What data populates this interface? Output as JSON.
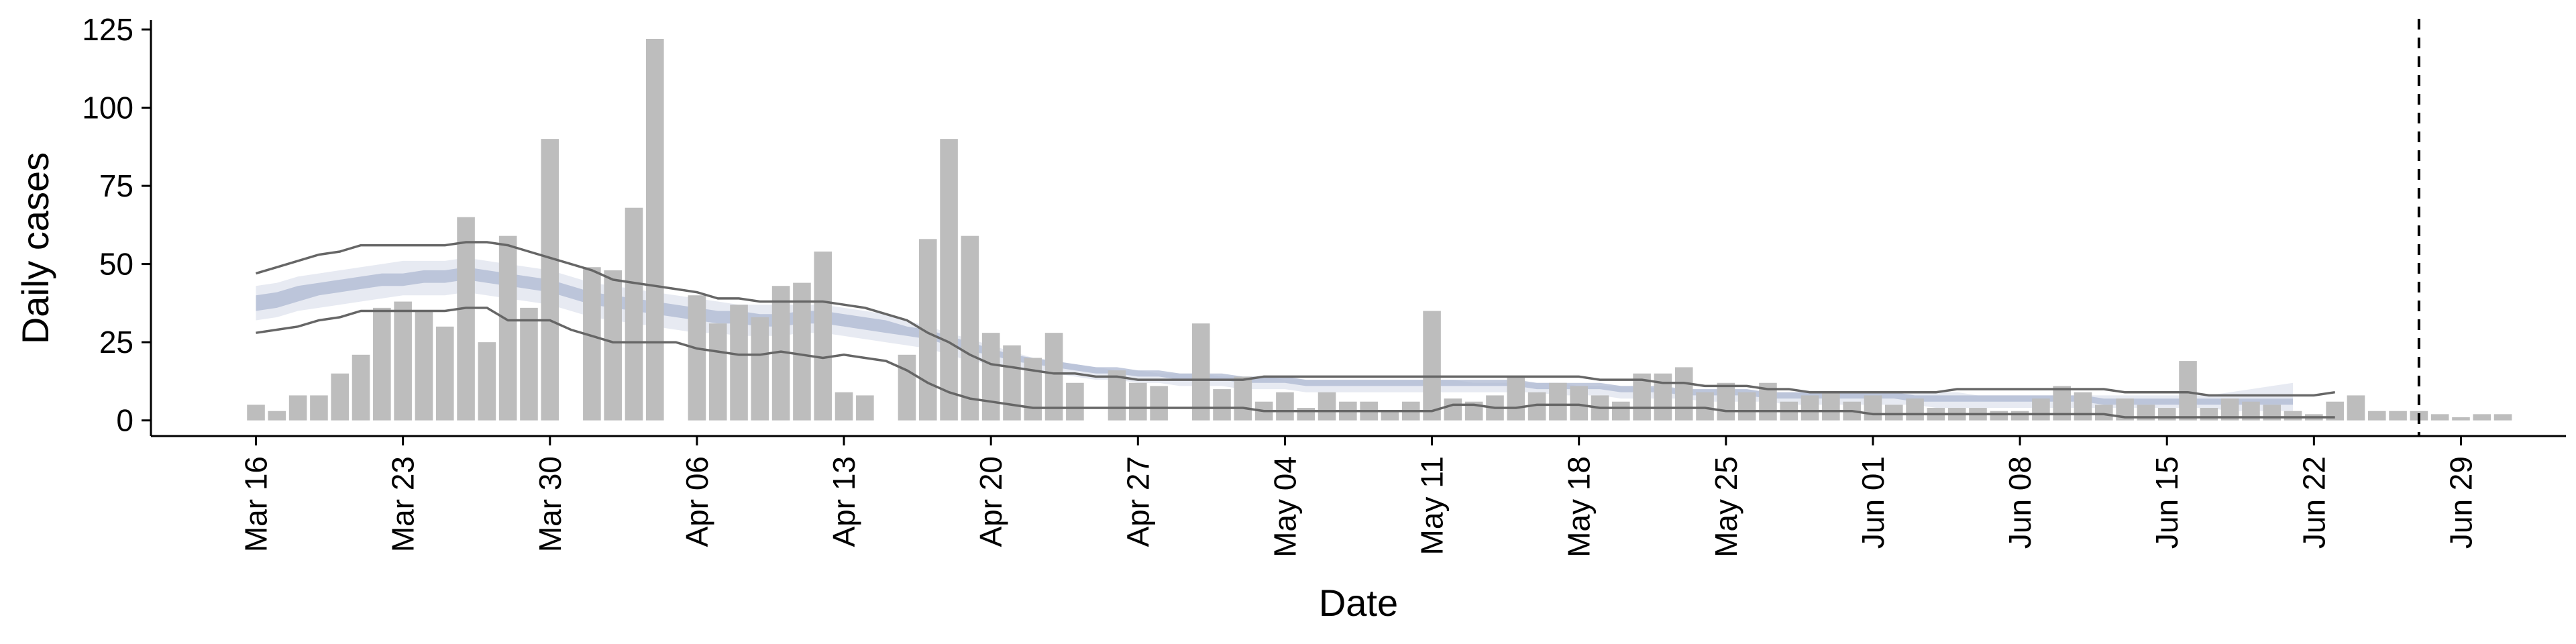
{
  "chart_data": {
    "type": "bar",
    "xlabel": "Date",
    "ylabel": "Daily cases",
    "ylim": [
      -5,
      128
    ],
    "y_ticks": [
      0,
      25,
      50,
      75,
      100,
      125
    ],
    "x_start": "2020-03-11",
    "x_end": "2020-07-04",
    "x_ticks": [
      {
        "label": "Mar 16",
        "date": "2020-03-16"
      },
      {
        "label": "Mar 23",
        "date": "2020-03-23"
      },
      {
        "label": "Mar 30",
        "date": "2020-03-30"
      },
      {
        "label": "Apr 06",
        "date": "2020-04-06"
      },
      {
        "label": "Apr 13",
        "date": "2020-04-13"
      },
      {
        "label": "Apr 20",
        "date": "2020-04-20"
      },
      {
        "label": "Apr 27",
        "date": "2020-04-27"
      },
      {
        "label": "May 04",
        "date": "2020-05-04"
      },
      {
        "label": "May 11",
        "date": "2020-05-11"
      },
      {
        "label": "May 18",
        "date": "2020-05-18"
      },
      {
        "label": "May 25",
        "date": "2020-05-25"
      },
      {
        "label": "Jun 01",
        "date": "2020-06-01"
      },
      {
        "label": "Jun 08",
        "date": "2020-06-08"
      },
      {
        "label": "Jun 15",
        "date": "2020-06-15"
      },
      {
        "label": "Jun 22",
        "date": "2020-06-22"
      },
      {
        "label": "Jun 29",
        "date": "2020-06-29"
      }
    ],
    "bars": {
      "start_date": "2020-03-16",
      "values": [
        5,
        3,
        8,
        8,
        15,
        21,
        36,
        38,
        35,
        30,
        65,
        25,
        59,
        36,
        90,
        0,
        49,
        48,
        68,
        122,
        0,
        40,
        31,
        37,
        33,
        43,
        44,
        54,
        9,
        8,
        0,
        21,
        58,
        90,
        59,
        28,
        24,
        20,
        28,
        12,
        0,
        16,
        12,
        11,
        0,
        31,
        10,
        14,
        6,
        9,
        4,
        9,
        6,
        6,
        3,
        6,
        35,
        7,
        6,
        8,
        14,
        9,
        12,
        11,
        8,
        6,
        15,
        15,
        17,
        9,
        12,
        9,
        12,
        6,
        8,
        9,
        6,
        8,
        5,
        7,
        4,
        4,
        4,
        3,
        3,
        7,
        11,
        9,
        5,
        7,
        5,
        4,
        19,
        4,
        7,
        6,
        5,
        3,
        2,
        6,
        8,
        3,
        3,
        3,
        2,
        1,
        2,
        2
      ]
    },
    "series": [
      {
        "style": "outer-band",
        "start_date": "2020-03-16",
        "lower": [
          32,
          33,
          35,
          36,
          37,
          38,
          39,
          40,
          40,
          40,
          41,
          40,
          39,
          38,
          37,
          35,
          33,
          32,
          31,
          30,
          29,
          28,
          28,
          27,
          27,
          27,
          28,
          28,
          27,
          26,
          25,
          24,
          23,
          21,
          19,
          18,
          17,
          16,
          15,
          14,
          13,
          13,
          12,
          12,
          11,
          11,
          11,
          10,
          10,
          10,
          9,
          9,
          9,
          9,
          9,
          9,
          9,
          9,
          9,
          9,
          9,
          9,
          8,
          8,
          8,
          7,
          7,
          7,
          7,
          6,
          6,
          6,
          6,
          5,
          5,
          5,
          5,
          5,
          5,
          5,
          4,
          4,
          4,
          4,
          4,
          4,
          4,
          4,
          4,
          4,
          4,
          4,
          4,
          4,
          3,
          3,
          3,
          3
        ],
        "upper": [
          43,
          44,
          46,
          47,
          48,
          49,
          50,
          51,
          51,
          51,
          52,
          51,
          50,
          49,
          48,
          46,
          44,
          43,
          42,
          41,
          40,
          39,
          38,
          37,
          37,
          37,
          37,
          37,
          36,
          35,
          34,
          32,
          30,
          28,
          26,
          24,
          22,
          20,
          19,
          18,
          17,
          16,
          16,
          15,
          15,
          15,
          14,
          14,
          14,
          13,
          13,
          13,
          13,
          13,
          13,
          13,
          13,
          13,
          12,
          12,
          12,
          12,
          12,
          11,
          11,
          11,
          11,
          10,
          10,
          10,
          10,
          10,
          9,
          9,
          9,
          9,
          9,
          9,
          9,
          9,
          9,
          9,
          8,
          8,
          8,
          8,
          8,
          8,
          8,
          8,
          8,
          8,
          8,
          8,
          9,
          10,
          11,
          12
        ]
      },
      {
        "style": "inner-band",
        "start_date": "2020-03-16",
        "lower": [
          35,
          36,
          38,
          40,
          41,
          42,
          43,
          43,
          44,
          44,
          45,
          44,
          43,
          42,
          41,
          39,
          37,
          36,
          35,
          34,
          33,
          32,
          31,
          31,
          30,
          30,
          31,
          31,
          30,
          29,
          28,
          27,
          26,
          24,
          22,
          21,
          19,
          18,
          17,
          16,
          15,
          15,
          14,
          14,
          13,
          13,
          13,
          12,
          12,
          12,
          11,
          11,
          11,
          11,
          11,
          11,
          11,
          11,
          11,
          11,
          11,
          10,
          10,
          10,
          10,
          9,
          9,
          9,
          8,
          8,
          8,
          8,
          7,
          7,
          7,
          7,
          7,
          7,
          7,
          6,
          6,
          6,
          6,
          6,
          6,
          6,
          6,
          6,
          5,
          5,
          5,
          5,
          5,
          5,
          5,
          5,
          5,
          5
        ],
        "upper": [
          40,
          41,
          43,
          44,
          45,
          46,
          47,
          47,
          48,
          48,
          49,
          48,
          47,
          46,
          45,
          43,
          41,
          40,
          39,
          38,
          37,
          36,
          35,
          35,
          34,
          34,
          35,
          35,
          34,
          33,
          32,
          30,
          29,
          27,
          25,
          23,
          21,
          20,
          19,
          18,
          17,
          17,
          16,
          16,
          15,
          15,
          15,
          14,
          14,
          14,
          13,
          13,
          13,
          13,
          13,
          13,
          13,
          13,
          13,
          13,
          13,
          12,
          12,
          12,
          12,
          11,
          11,
          11,
          10,
          10,
          10,
          10,
          9,
          9,
          9,
          9,
          9,
          9,
          9,
          8,
          8,
          8,
          8,
          8,
          8,
          8,
          8,
          8,
          7,
          7,
          7,
          7,
          7,
          7,
          7,
          7,
          7,
          7
        ]
      },
      {
        "style": "upper-line",
        "start_date": "2020-03-16",
        "values": [
          47,
          49,
          51,
          53,
          54,
          56,
          56,
          56,
          56,
          56,
          57,
          57,
          56,
          54,
          52,
          50,
          48,
          45,
          44,
          43,
          42,
          41,
          39,
          39,
          38,
          38,
          38,
          38,
          37,
          36,
          34,
          32,
          28,
          25,
          21,
          18,
          17,
          16,
          15,
          15,
          14,
          14,
          13,
          13,
          13,
          13,
          13,
          13,
          14,
          14,
          14,
          14,
          14,
          14,
          14,
          14,
          14,
          14,
          14,
          14,
          14,
          14,
          14,
          14,
          13,
          13,
          13,
          12,
          12,
          11,
          11,
          11,
          10,
          10,
          9,
          9,
          9,
          9,
          9,
          9,
          9,
          10,
          10,
          10,
          10,
          10,
          10,
          10,
          10,
          9,
          9,
          9,
          9,
          8,
          8,
          8,
          8,
          8,
          8,
          9
        ]
      },
      {
        "style": "lower-line",
        "start_date": "2020-03-16",
        "values": [
          28,
          29,
          30,
          32,
          33,
          35,
          35,
          35,
          35,
          35,
          36,
          36,
          32,
          32,
          32,
          29,
          27,
          25,
          25,
          25,
          25,
          23,
          22,
          21,
          21,
          22,
          21,
          20,
          21,
          20,
          19,
          16,
          12,
          9,
          7,
          6,
          5,
          4,
          4,
          4,
          4,
          4,
          4,
          4,
          4,
          4,
          4,
          4,
          3,
          3,
          3,
          3,
          3,
          3,
          3,
          3,
          3,
          5,
          5,
          4,
          4,
          5,
          5,
          5,
          4,
          4,
          4,
          4,
          4,
          4,
          3,
          3,
          3,
          3,
          3,
          3,
          3,
          2,
          2,
          2,
          2,
          2,
          2,
          2,
          2,
          2,
          2,
          2,
          2,
          1,
          1,
          1,
          1,
          1,
          1,
          1,
          1,
          1,
          1,
          1
        ]
      }
    ],
    "vline_date": "2020-06-27"
  }
}
